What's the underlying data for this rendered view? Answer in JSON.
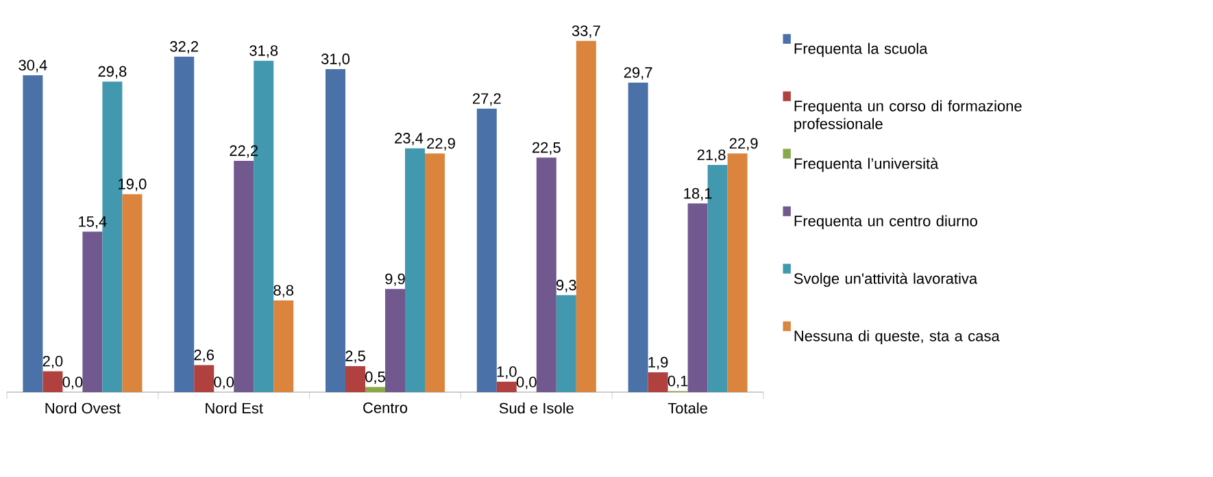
{
  "chart_data": {
    "type": "bar",
    "categories": [
      "Nord Ovest",
      "Nord Est",
      "Centro",
      "Sud e Isole",
      "Totale"
    ],
    "legend": "right",
    "series": [
      {
        "name": "Frequenta la scuola",
        "color": "#4a72a8",
        "values": [
          30.4,
          32.2,
          31.0,
          27.2,
          29.7
        ],
        "value_labels": [
          "30,4",
          "32,2",
          "31,0",
          "27,2",
          "29,7"
        ]
      },
      {
        "name": "Frequenta un corso di formazione professionale",
        "color": "#b0413e",
        "values": [
          2.0,
          2.6,
          2.5,
          1.0,
          1.9
        ],
        "value_labels": [
          "2,0",
          "2,6",
          "2,5",
          "1,0",
          "1,9"
        ]
      },
      {
        "name": "Frequenta l’università",
        "color": "#8aa84a",
        "values": [
          0.0,
          0.0,
          0.5,
          0.0,
          0.1
        ],
        "value_labels": [
          "0,0",
          "0,0",
          "0,5",
          "0,0",
          "0,1"
        ]
      },
      {
        "name": "Frequenta un centro diurno",
        "color": "#71588f",
        "values": [
          15.4,
          22.2,
          9.9,
          22.5,
          18.1
        ],
        "value_labels": [
          "15,4",
          "22,2",
          "9,9",
          "22,5",
          "18,1"
        ]
      },
      {
        "name": "Svolge un'attività lavorativa",
        "color": "#4198af",
        "values": [
          29.8,
          31.8,
          23.4,
          9.3,
          21.8
        ],
        "value_labels": [
          "29,8",
          "31,8",
          "23,4",
          "9,3",
          "21,8"
        ]
      },
      {
        "name": "Nessuna di queste, sta a casa",
        "color": "#db843d",
        "values": [
          19.0,
          8.8,
          22.9,
          33.7,
          22.9
        ],
        "value_labels": [
          "19,0",
          "8,8",
          "22,9",
          "33,7",
          "22,9"
        ]
      }
    ]
  }
}
